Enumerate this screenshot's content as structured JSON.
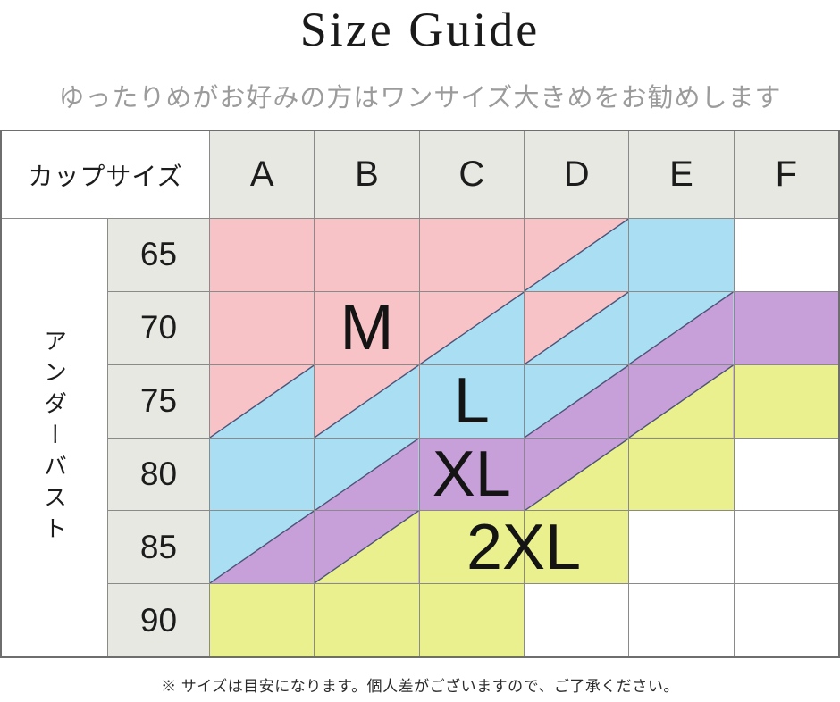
{
  "title": "Size Guide",
  "subtitle": "ゆったりめがお好みの方はワンサイズ大きめをお勧めします",
  "footer_note": "※ サイズは目安になります。個人差がございますので、ご了承ください。",
  "colors": {
    "M": "#f8c3c6",
    "L": "#aadef2",
    "XL": "#c7a0d9",
    "2XL": "#e9f08d",
    "header_bg": "#e8e8e2",
    "grid_line": "#8a8a8a",
    "diagonal_line": "#4d5377",
    "subtitle_text": "#9b9b9b"
  },
  "chart_data": {
    "type": "table",
    "col_header_label": "カップサイズ",
    "row_header_label": "アンダーバスト",
    "cup_sizes": [
      "A",
      "B",
      "C",
      "D",
      "E",
      "F"
    ],
    "underbust_values": [
      "65",
      "70",
      "75",
      "80",
      "85",
      "90"
    ],
    "legend_note": "cell codes: single size = solid fill; 'X/Y' = diagonal split, X upper-left, Y lower-right; '' = empty",
    "grid": [
      [
        "M",
        "M",
        "M",
        "M/L",
        "L",
        ""
      ],
      [
        "M",
        "M",
        "M/L",
        "M/L",
        "L/XL",
        "XL"
      ],
      [
        "M/L",
        "M/L",
        "L",
        "L/XL",
        "XL/2XL",
        "2XL"
      ],
      [
        "L",
        "L/XL",
        "XL",
        "XL/2XL",
        "2XL",
        ""
      ],
      [
        "L/XL",
        "XL/2XL",
        "2XL",
        "2XL",
        "",
        ""
      ],
      [
        "2XL",
        "2XL",
        "2XL",
        "",
        "",
        ""
      ]
    ],
    "size_labels": [
      {
        "label": "M",
        "row": "70",
        "col": "B",
        "span": 1
      },
      {
        "label": "L",
        "row": "75",
        "col": "C",
        "span": 1
      },
      {
        "label": "XL",
        "row": "80",
        "col": "C",
        "span": 1
      },
      {
        "label": "2XL",
        "row": "85",
        "col": "C-D",
        "span": 2
      }
    ]
  }
}
